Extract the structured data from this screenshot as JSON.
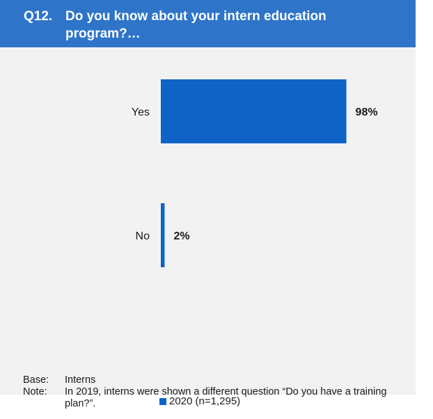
{
  "header": {
    "question_number": "Q12.",
    "question_text": "Do you know about your intern education program?…"
  },
  "legend": {
    "label": "2020 (n=1,295)"
  },
  "footnotes": {
    "base_label": "Base:",
    "base_text": "Interns",
    "note_label": "Note:",
    "note_text": "In 2019, interns were shown a different question “Do you have a training plan?”."
  },
  "colors": {
    "header": "#2e75c9",
    "bar": "#0f63c7",
    "panel": "#f2f2f2"
  },
  "chart_data": {
    "type": "bar",
    "orientation": "horizontal",
    "title": "",
    "categories": [
      "Yes",
      "No"
    ],
    "series": [
      {
        "name": "2020 (n=1,295)",
        "values": [
          98,
          2
        ]
      }
    ],
    "value_labels": [
      "98%",
      "2%"
    ],
    "xlim": [
      0,
      100
    ],
    "grid": false,
    "legend_position": "bottom"
  }
}
